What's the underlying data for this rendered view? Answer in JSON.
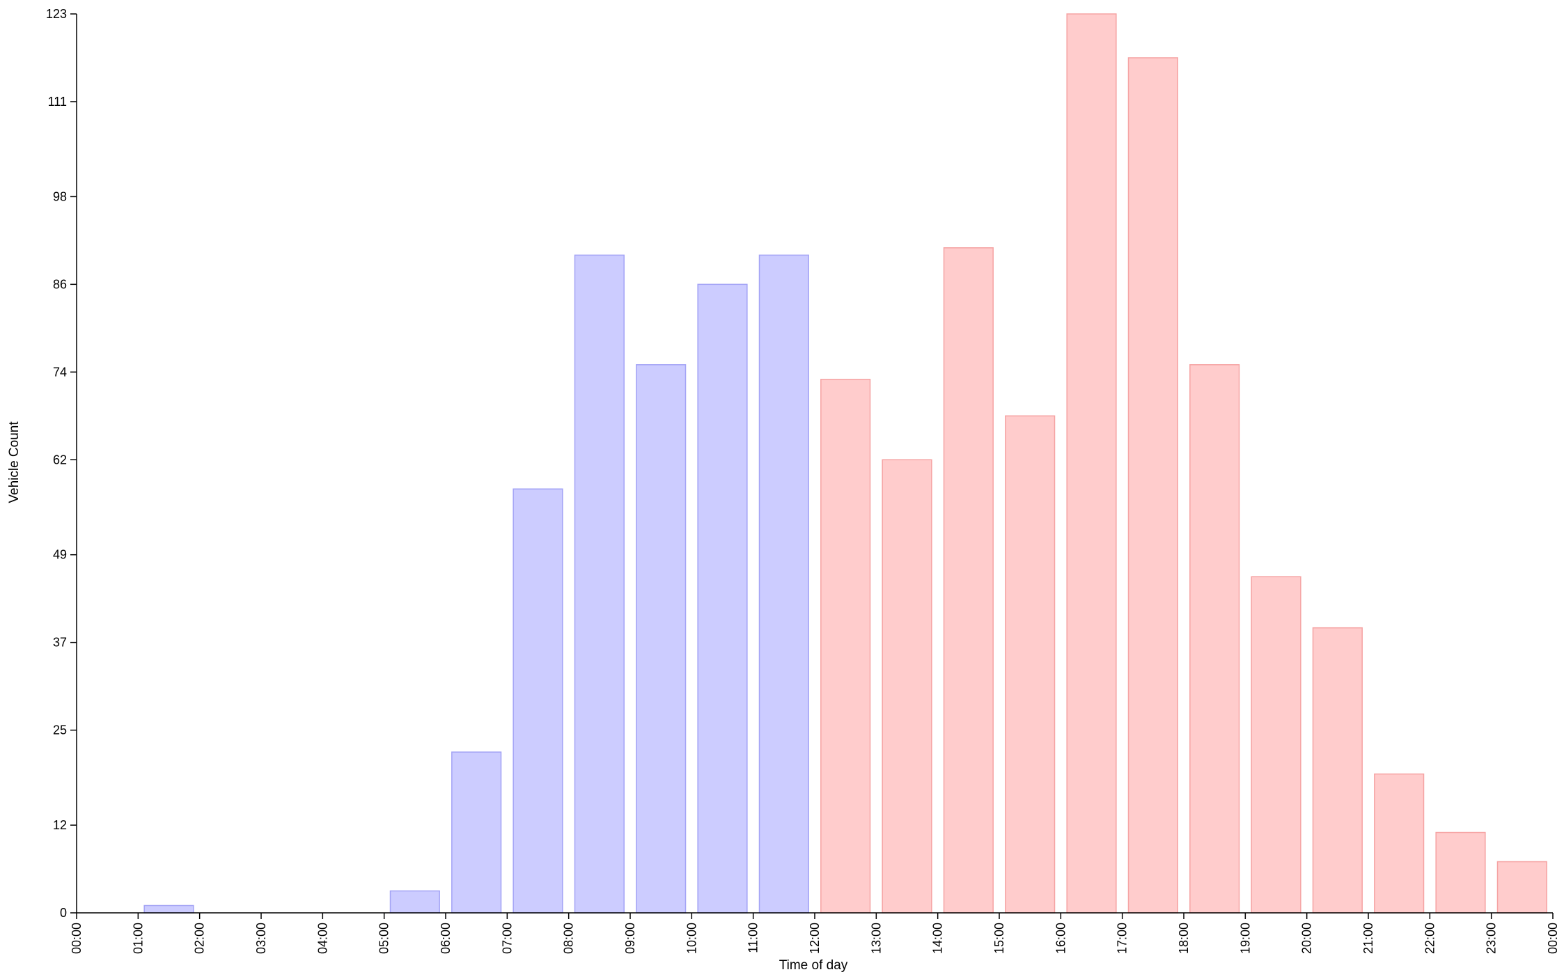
{
  "chart_data": {
    "type": "bar",
    "xlabel": "Time of day",
    "ylabel": "Vehicle Count",
    "ylim": [
      0,
      123
    ],
    "yticks": [
      0,
      12,
      25,
      37,
      49,
      62,
      74,
      86,
      98,
      111,
      123
    ],
    "xticks": [
      "00:00",
      "01:00",
      "02:00",
      "03:00",
      "04:00",
      "05:00",
      "06:00",
      "07:00",
      "08:00",
      "09:00",
      "10:00",
      "11:00",
      "12:00",
      "13:00",
      "14:00",
      "15:00",
      "16:00",
      "17:00",
      "18:00",
      "19:00",
      "20:00",
      "21:00",
      "22:00",
      "23:00",
      "00:00"
    ],
    "categories": [
      "00:00",
      "01:00",
      "02:00",
      "03:00",
      "04:00",
      "05:00",
      "06:00",
      "07:00",
      "08:00",
      "09:00",
      "10:00",
      "11:00",
      "12:00",
      "13:00",
      "14:00",
      "15:00",
      "16:00",
      "17:00",
      "18:00",
      "19:00",
      "20:00",
      "21:00",
      "22:00",
      "23:00"
    ],
    "values": [
      0,
      1,
      0,
      0,
      0,
      3,
      22,
      58,
      90,
      75,
      86,
      90,
      73,
      62,
      91,
      68,
      123,
      117,
      75,
      46,
      39,
      19,
      11,
      7
    ],
    "grid": false,
    "colors": {
      "morning_fill": "#ccccff",
      "morning_stroke": "#a3a3f5",
      "afternoon_fill": "#ffcccc",
      "afternoon_stroke": "#f5a3a3",
      "axis": "#000000"
    }
  }
}
